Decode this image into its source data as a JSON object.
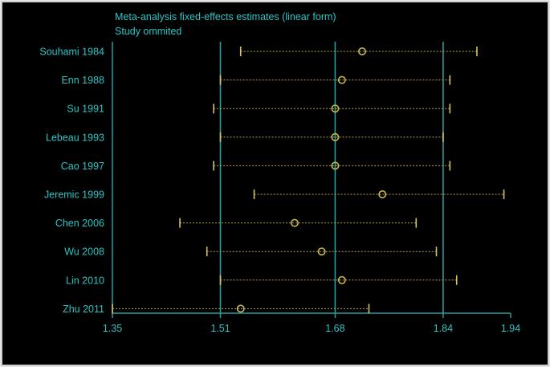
{
  "colors": {
    "background": "#000000",
    "text": "#2ec4c4",
    "axis": "#2a9d9d",
    "point": "#c9b84a",
    "ci_line": "#b9a45a",
    "cap": "#d6c55a",
    "border": "#cfcfcf"
  },
  "chart_data": {
    "type": "scatter",
    "title": "Meta-analysis fixed-effects estimates (linear form)",
    "subtitle": "Study ommited",
    "xlim": [
      1.35,
      1.94
    ],
    "xticks": [
      1.35,
      1.51,
      1.68,
      1.84,
      1.94
    ],
    "xtick_labels": [
      "1.35",
      "1.51",
      "1.68",
      "1.84",
      "1.94"
    ],
    "reference_lines": [
      1.51,
      1.68,
      1.84
    ],
    "studies": [
      {
        "label": "Souhami 1984",
        "estimate": 1.72,
        "lower": 1.54,
        "upper": 1.89
      },
      {
        "label": "Enn 1988",
        "estimate": 1.69,
        "lower": 1.51,
        "upper": 1.85
      },
      {
        "label": "Su 1991",
        "estimate": 1.68,
        "lower": 1.5,
        "upper": 1.85
      },
      {
        "label": "Lebeau 1993",
        "estimate": 1.68,
        "lower": 1.51,
        "upper": 1.84
      },
      {
        "label": "Cao 1997",
        "estimate": 1.68,
        "lower": 1.5,
        "upper": 1.85
      },
      {
        "label": "Jeremic 1999",
        "estimate": 1.75,
        "lower": 1.56,
        "upper": 1.93
      },
      {
        "label": "Chen 2006",
        "estimate": 1.62,
        "lower": 1.45,
        "upper": 1.8
      },
      {
        "label": "Wu 2008",
        "estimate": 1.66,
        "lower": 1.49,
        "upper": 1.83
      },
      {
        "label": "Lin 2010",
        "estimate": 1.69,
        "lower": 1.51,
        "upper": 1.86
      },
      {
        "label": "Zhu 2011",
        "estimate": 1.54,
        "lower": 1.35,
        "upper": 1.73
      }
    ]
  }
}
